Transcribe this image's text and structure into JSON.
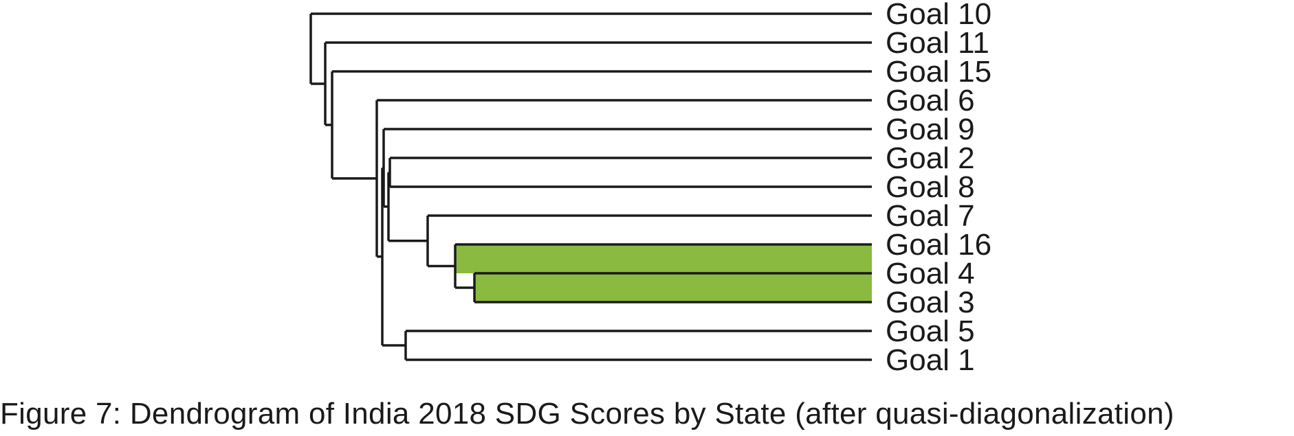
{
  "figure": {
    "caption": "Figure 7: Dendrogram of India 2018 SDG Scores by State (after quasi-diagonalization)"
  },
  "dendrogram": {
    "leaves": [
      "Goal 10",
      "Goal 11",
      "Goal 15",
      "Goal 6",
      "Goal 9",
      "Goal 2",
      "Goal 8",
      "Goal 7",
      "Goal 16",
      "Goal 4",
      "Goal 3",
      "Goal 5",
      "Goal 1"
    ],
    "highlight_leaves": [
      "Goal 16",
      "Goal 4",
      "Goal 3"
    ],
    "colors": {
      "branch": "#1a1a1a",
      "highlight": "#8aba3f",
      "text": "#1a1a1a"
    }
  }
}
